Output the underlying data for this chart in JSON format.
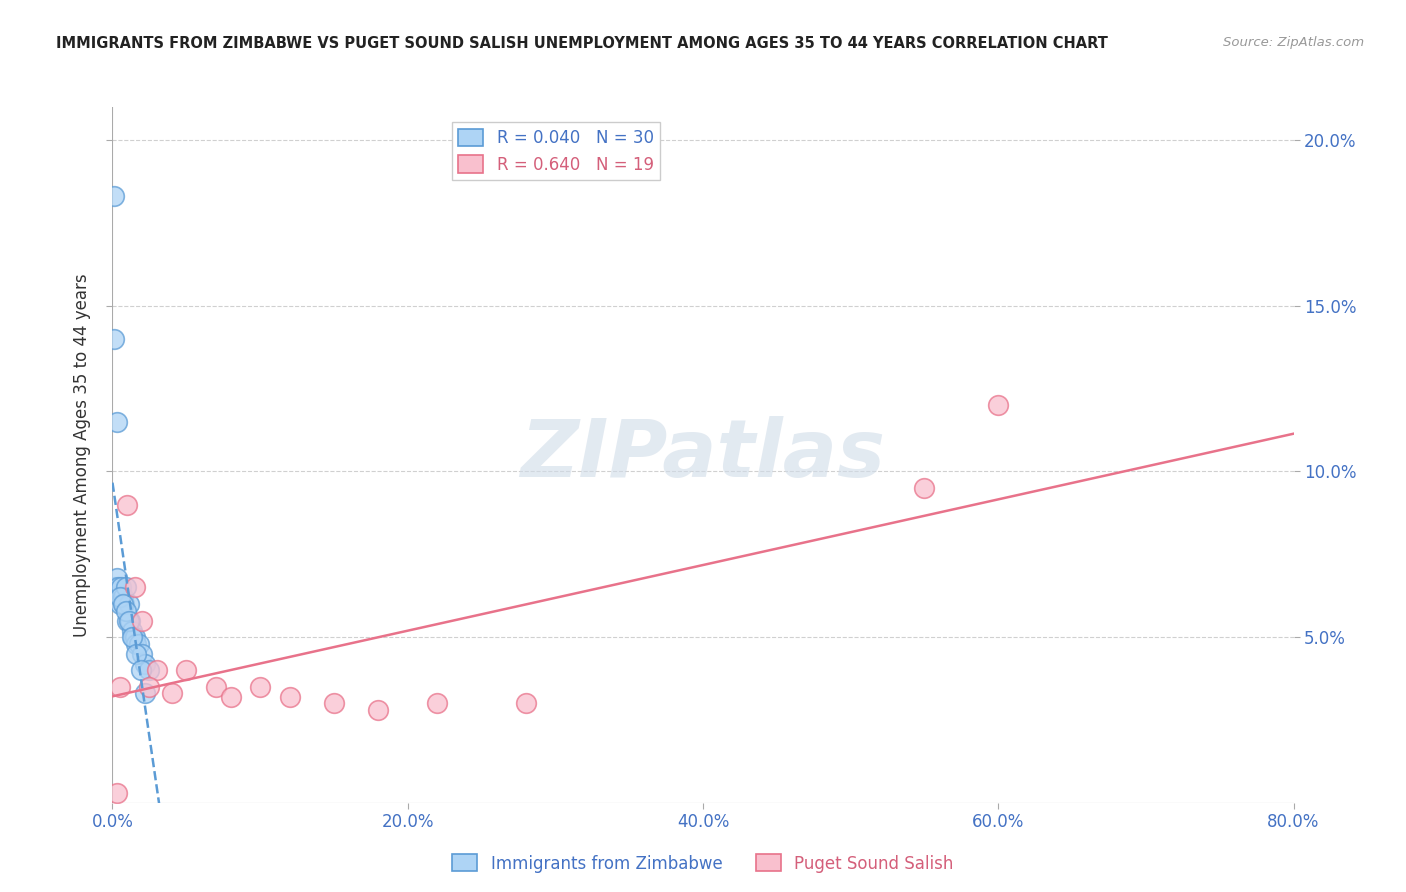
{
  "title": "IMMIGRANTS FROM ZIMBABWE VS PUGET SOUND SALISH UNEMPLOYMENT AMONG AGES 35 TO 44 YEARS CORRELATION CHART",
  "source": "Source: ZipAtlas.com",
  "ylabel": "Unemployment Among Ages 35 to 44 years",
  "xlim": [
    0,
    0.8
  ],
  "ylim": [
    0,
    0.21
  ],
  "yticks": [
    0.05,
    0.1,
    0.15,
    0.2
  ],
  "ytick_labels_right": [
    "5.0%",
    "10.0%",
    "15.0%",
    "20.0%"
  ],
  "xticks": [
    0.0,
    0.2,
    0.4,
    0.6,
    0.8
  ],
  "xtick_labels": [
    "0.0%",
    "20.0%",
    "40.0%",
    "60.0%",
    "80.0%"
  ],
  "legend1_label": "R = 0.040   N = 30",
  "legend2_label": "R = 0.640   N = 19",
  "scatter1_face": "#aed4f5",
  "scatter1_edge": "#5b9bd5",
  "scatter2_face": "#f9c0ce",
  "scatter2_edge": "#e8728a",
  "line1_color": "#5b9bd5",
  "line1_style": "--",
  "line2_color": "#e8728a",
  "line2_style": "-",
  "text_color_blue": "#4472c4",
  "text_color_pink": "#d45f7a",
  "watermark": "ZIPatlas",
  "background_color": "#ffffff",
  "grid_color": "#d0d0d0",
  "zimbabwe_x": [
    0.001,
    0.002,
    0.003,
    0.004,
    0.005,
    0.006,
    0.007,
    0.008,
    0.009,
    0.01,
    0.011,
    0.012,
    0.013,
    0.014,
    0.015,
    0.016,
    0.018,
    0.02,
    0.022,
    0.025,
    0.001,
    0.003,
    0.005,
    0.007,
    0.009,
    0.011,
    0.013,
    0.016,
    0.019,
    0.022
  ],
  "zimbabwe_y": [
    0.183,
    0.065,
    0.068,
    0.065,
    0.06,
    0.065,
    0.062,
    0.06,
    0.065,
    0.055,
    0.06,
    0.055,
    0.052,
    0.05,
    0.05,
    0.048,
    0.048,
    0.045,
    0.042,
    0.04,
    0.14,
    0.115,
    0.062,
    0.06,
    0.058,
    0.055,
    0.05,
    0.045,
    0.04,
    0.033
  ],
  "salish_x": [
    0.003,
    0.01,
    0.015,
    0.02,
    0.03,
    0.05,
    0.07,
    0.08,
    0.1,
    0.12,
    0.15,
    0.18,
    0.22,
    0.28,
    0.55,
    0.6,
    0.005,
    0.025,
    0.04
  ],
  "salish_y": [
    0.003,
    0.09,
    0.065,
    0.055,
    0.04,
    0.04,
    0.035,
    0.032,
    0.035,
    0.032,
    0.03,
    0.028,
    0.03,
    0.03,
    0.095,
    0.12,
    0.035,
    0.035,
    0.033
  ]
}
